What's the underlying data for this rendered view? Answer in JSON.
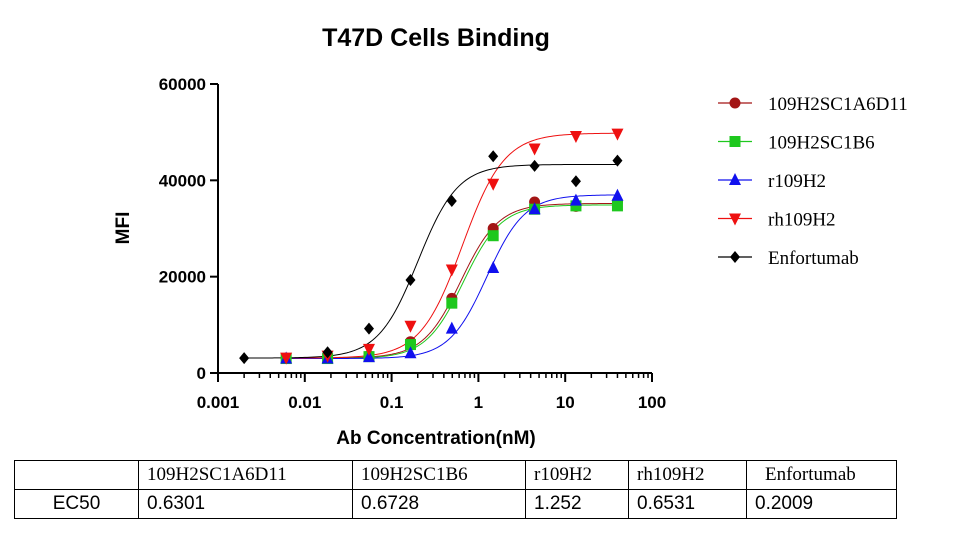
{
  "chart_data": {
    "type": "scatter",
    "title": "T47D  Cells Binding",
    "xlabel": "Ab Concentration(nM)",
    "ylabel": "MFI",
    "xscale": "log",
    "xlim": [
      0.001,
      100
    ],
    "ylim": [
      0,
      60000
    ],
    "xticks": [
      "0.001",
      "0.01",
      "0.1",
      "1",
      "10",
      "100"
    ],
    "yticks": [
      "0",
      "20000",
      "40000",
      "60000"
    ],
    "legend_position": "right",
    "series": [
      {
        "name": "109H2SC1A6D11",
        "color": "#a31515",
        "marker": "circle",
        "x": [
          0.0061,
          0.0183,
          0.0549,
          0.165,
          0.494,
          1.48,
          4.44,
          13.3,
          40
        ],
        "y": [
          3100,
          3200,
          3600,
          6500,
          15500,
          30000,
          35500,
          34600,
          35500
        ],
        "fit": {
          "bottom": 3100,
          "top": 35200,
          "ec50": 0.6301,
          "hill": 2.0
        }
      },
      {
        "name": "109H2SC1B6",
        "color": "#1ec81e",
        "marker": "square",
        "x": [
          0.0061,
          0.0183,
          0.0549,
          0.165,
          0.494,
          1.48,
          4.44,
          13.3,
          40
        ],
        "y": [
          3000,
          3000,
          3400,
          5900,
          14500,
          28500,
          34000,
          34700,
          34700
        ],
        "fit": {
          "bottom": 3000,
          "top": 34900,
          "ec50": 0.6728,
          "hill": 2.0
        }
      },
      {
        "name": "r109H2",
        "color": "#1010ee",
        "marker": "triangle-up",
        "x": [
          0.0061,
          0.0183,
          0.0549,
          0.165,
          0.494,
          1.48,
          4.44,
          13.3,
          40
        ],
        "y": [
          3000,
          3000,
          3300,
          4100,
          9200,
          21800,
          34000,
          35800,
          36800
        ],
        "fit": {
          "bottom": 3000,
          "top": 37000,
          "ec50": 1.252,
          "hill": 2.0
        }
      },
      {
        "name": "rh109H2",
        "color": "#ee1010",
        "marker": "triangle-down",
        "x": [
          0.0061,
          0.0183,
          0.0549,
          0.165,
          0.494,
          1.48,
          4.44,
          13.3,
          40
        ],
        "y": [
          3200,
          3600,
          5000,
          9800,
          21500,
          39300,
          46600,
          49200,
          49700
        ],
        "fit": {
          "bottom": 3100,
          "top": 49800,
          "ec50": 0.6531,
          "hill": 1.8
        }
      },
      {
        "name": "Enfortumab",
        "color": "#000000",
        "marker": "diamond",
        "x": [
          0.002,
          0.0183,
          0.0549,
          0.165,
          0.494,
          1.48,
          4.44,
          13.3,
          40
        ],
        "y": [
          3100,
          4300,
          9200,
          19300,
          35700,
          45000,
          43000,
          39800,
          44100
        ],
        "fit": {
          "bottom": 3100,
          "top": 43300,
          "ec50": 0.2009,
          "hill": 1.9
        }
      }
    ]
  },
  "ec50_table": {
    "row_label": "EC50",
    "headers": [
      "109H2SC1A6D11",
      "109H2SC1B6",
      "r109H2",
      "rh109H2",
      "Enfortumab"
    ],
    "values": [
      "0.6301",
      "0.6728",
      "1.252",
      "0.6531",
      "0.2009"
    ]
  }
}
